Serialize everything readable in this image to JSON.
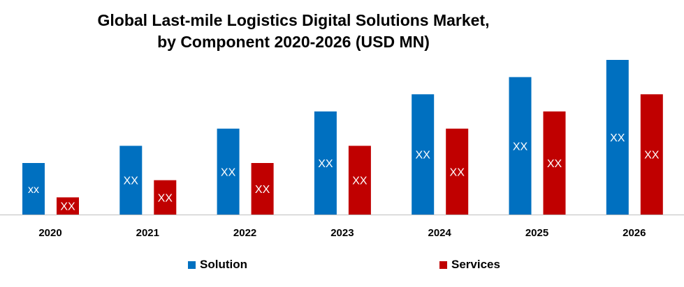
{
  "chart_data": {
    "type": "bar",
    "title": "Global Last-mile Logistics Digital Solutions Market, by Component 2020-2026 (USD MN)",
    "title_lines": [
      "Global Last-mile Logistics Digital Solutions Market,",
      "by Component 2020-2026 (USD MN)"
    ],
    "categories": [
      "2020",
      "2021",
      "2022",
      "2023",
      "2024",
      "2025",
      "2026"
    ],
    "series": [
      {
        "name": "Solution",
        "color": "#0070C0",
        "values": [
          3,
          4,
          5,
          6,
          7,
          8,
          9
        ],
        "labels": [
          "xx",
          "XX",
          "XX",
          "XX",
          "XX",
          "XX",
          "XX"
        ]
      },
      {
        "name": "Services",
        "color": "#C00000",
        "values": [
          1,
          2,
          3,
          4,
          5,
          6,
          7
        ],
        "labels": [
          "XX",
          "XX",
          "XX",
          "XX",
          "XX",
          "XX",
          "XX"
        ]
      }
    ],
    "xlabel": "",
    "ylabel": "",
    "ylim": [
      0,
      9
    ],
    "grid": false,
    "y_axis_visible": false,
    "legend_position": "bottom"
  }
}
